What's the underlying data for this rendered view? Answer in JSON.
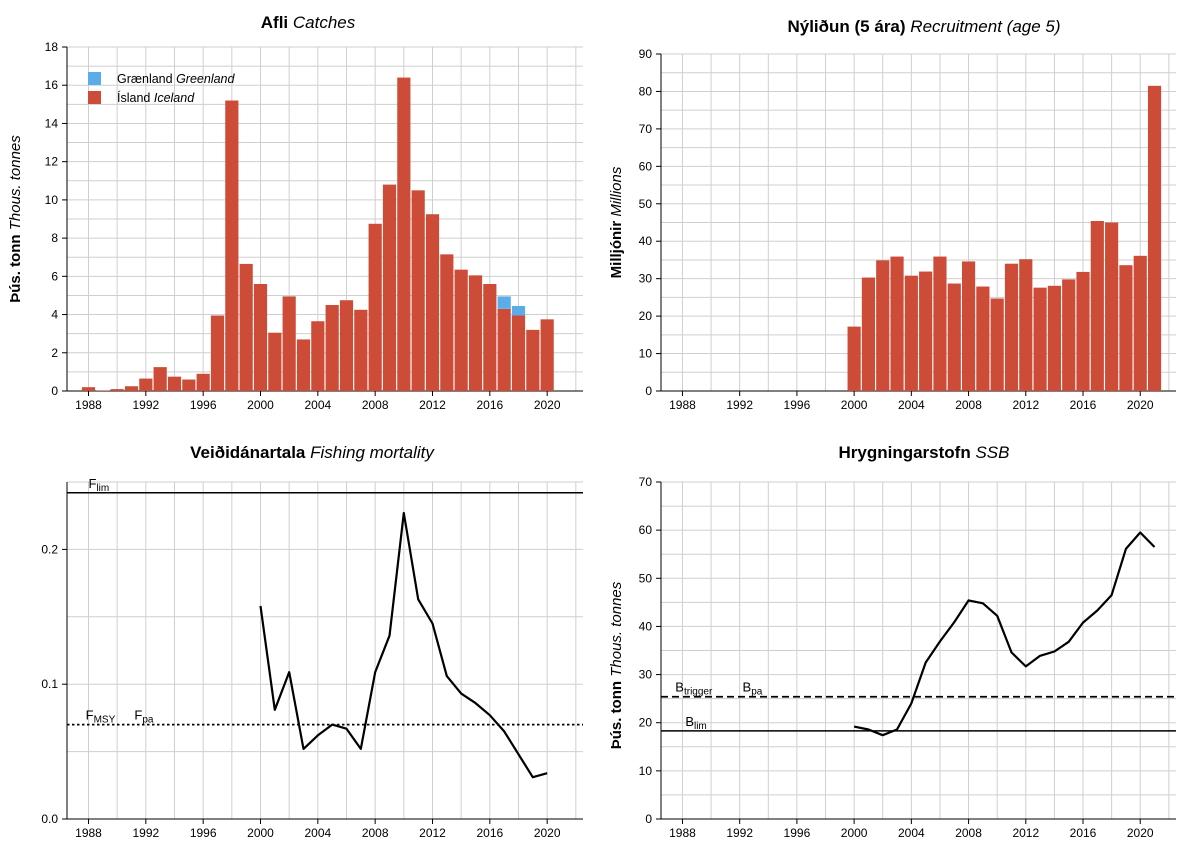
{
  "colors": {
    "iceland": "#cd4c38",
    "greenland": "#5aade9",
    "grid": "#cfcfcf",
    "line": "#000000"
  },
  "chart_data": [
    {
      "id": "catches",
      "type": "bar",
      "title": "Afli",
      "title_en": "Catches",
      "ylabel": "Þús. tonn",
      "ylabel_en": "Thous. tonnes",
      "ylim": [
        0,
        18
      ],
      "yticks": [
        0,
        2,
        4,
        6,
        8,
        10,
        12,
        14,
        16,
        18
      ],
      "xlim": [
        1986.5,
        2022.5
      ],
      "xticks": [
        1988,
        1992,
        1996,
        2000,
        2004,
        2008,
        2012,
        2016,
        2020
      ],
      "grid": true,
      "stacked": true,
      "legend_position": "top-left",
      "x": [
        1988,
        1989,
        1990,
        1991,
        1992,
        1993,
        1994,
        1995,
        1996,
        1997,
        1998,
        1999,
        2000,
        2001,
        2002,
        2003,
        2004,
        2005,
        2006,
        2007,
        2008,
        2009,
        2010,
        2011,
        2012,
        2013,
        2014,
        2015,
        2016,
        2017,
        2018,
        2019,
        2020
      ],
      "series": [
        {
          "name": "Ísland",
          "name_en": "Iceland",
          "color": "#cd4c38",
          "values": [
            0.2,
            0.02,
            0.1,
            0.25,
            0.65,
            1.25,
            0.75,
            0.6,
            0.9,
            3.95,
            15.2,
            6.65,
            5.6,
            3.05,
            4.95,
            2.7,
            3.65,
            4.5,
            4.75,
            4.25,
            8.75,
            10.8,
            16.4,
            10.5,
            9.25,
            7.15,
            6.35,
            6.05,
            5.6,
            4.3,
            3.95,
            3.2,
            3.75
          ]
        },
        {
          "name": "Grænland",
          "name_en": "Greenland",
          "color": "#5aade9",
          "values": [
            0,
            0,
            0,
            0,
            0,
            0,
            0,
            0,
            0,
            0,
            0,
            0,
            0,
            0,
            0,
            0,
            0,
            0,
            0,
            0,
            0,
            0,
            0,
            0,
            0,
            0,
            0,
            0,
            0,
            0.65,
            0.5,
            0,
            0
          ]
        }
      ]
    },
    {
      "id": "recruitment",
      "type": "bar",
      "title": "Nýliðun (5 ára)",
      "title_en": "Recruitment (age 5)",
      "ylabel": "Milljónir",
      "ylabel_en": "Millions",
      "ylim": [
        0,
        90
      ],
      "yticks": [
        0,
        10,
        20,
        30,
        40,
        50,
        60,
        70,
        80,
        90
      ],
      "xlim": [
        1986.5,
        2022.5
      ],
      "xticks": [
        1988,
        1992,
        1996,
        2000,
        2004,
        2008,
        2012,
        2016,
        2020
      ],
      "grid": true,
      "x": [
        2000,
        2001,
        2002,
        2003,
        2004,
        2005,
        2006,
        2007,
        2008,
        2009,
        2010,
        2011,
        2012,
        2013,
        2014,
        2015,
        2016,
        2017,
        2018,
        2019,
        2020,
        2021
      ],
      "series": [
        {
          "name": "",
          "color": "#cd4c38",
          "values": [
            17.2,
            30.3,
            34.9,
            35.9,
            30.8,
            31.9,
            35.9,
            28.7,
            34.6,
            27.9,
            24.7,
            34.0,
            35.2,
            27.6,
            28.1,
            29.8,
            31.8,
            45.4,
            45.0,
            33.6,
            36.1,
            81.5
          ]
        }
      ]
    },
    {
      "id": "fishing-mortality",
      "type": "line",
      "title": "Veiðidánartala",
      "title_en": "Fishing mortality",
      "ylim": [
        0,
        0.25
      ],
      "yticks": [
        0.0,
        0.1,
        0.2
      ],
      "ytick_labels": [
        "0.0",
        "0.1",
        "0.2"
      ],
      "xlim": [
        1986.5,
        2022.5
      ],
      "xticks": [
        1988,
        1992,
        1996,
        2000,
        2004,
        2008,
        2012,
        2016,
        2020
      ],
      "grid": true,
      "x": [
        2000,
        2001,
        2002,
        2003,
        2004,
        2005,
        2006,
        2007,
        2008,
        2009,
        2010,
        2011,
        2012,
        2013,
        2014,
        2015,
        2016,
        2017,
        2018,
        2019,
        2020
      ],
      "series": [
        {
          "name": "",
          "values": [
            0.158,
            0.081,
            0.109,
            0.052,
            0.062,
            0.07,
            0.067,
            0.052,
            0.109,
            0.136,
            0.227,
            0.163,
            0.145,
            0.106,
            0.093,
            0.086,
            0.077,
            0.065,
            0.048,
            0.031,
            0.034
          ]
        }
      ],
      "reference_lines": [
        {
          "main": "F",
          "sub": "lim",
          "value": 0.242,
          "style": "solid",
          "label_year": 1988
        },
        {
          "main": "F",
          "sub": "MSY",
          "value": 0.07,
          "style": "dotted",
          "label_year": 1987.8
        },
        {
          "main": "F",
          "sub": "pa",
          "value": 0.07,
          "style": "none",
          "label_year": 1991.2
        }
      ]
    },
    {
      "id": "ssb",
      "type": "line",
      "title": "Hrygningarstofn",
      "title_en": "SSB",
      "ylabel": "Þús. tonn",
      "ylabel_en": "Thous. tonnes",
      "ylim": [
        0,
        70
      ],
      "yticks": [
        0,
        10,
        20,
        30,
        40,
        50,
        60,
        70
      ],
      "xlim": [
        1986.5,
        2022.5
      ],
      "xticks": [
        1988,
        1992,
        1996,
        2000,
        2004,
        2008,
        2012,
        2016,
        2020
      ],
      "grid": true,
      "x": [
        2000,
        2001,
        2002,
        2003,
        2004,
        2005,
        2006,
        2007,
        2008,
        2009,
        2010,
        2011,
        2012,
        2013,
        2014,
        2015,
        2016,
        2017,
        2018,
        2019,
        2020,
        2021
      ],
      "series": [
        {
          "name": "",
          "values": [
            19.2,
            18.6,
            17.4,
            18.6,
            24.0,
            32.5,
            36.9,
            40.9,
            45.4,
            44.8,
            42.2,
            34.6,
            31.7,
            33.9,
            34.8,
            36.8,
            40.8,
            43.3,
            46.5,
            56.1,
            59.5,
            56.5
          ]
        }
      ],
      "reference_lines": [
        {
          "main": "B",
          "sub": "trigger",
          "value": 25.4,
          "style": "dashed",
          "label_year": 1987.5
        },
        {
          "main": "B",
          "sub": "pa",
          "value": 25.4,
          "style": "none",
          "label_year": 1992.2
        },
        {
          "main": "B",
          "sub": "lim",
          "value": 18.3,
          "style": "solid",
          "label_year": 1988.2
        }
      ]
    }
  ]
}
